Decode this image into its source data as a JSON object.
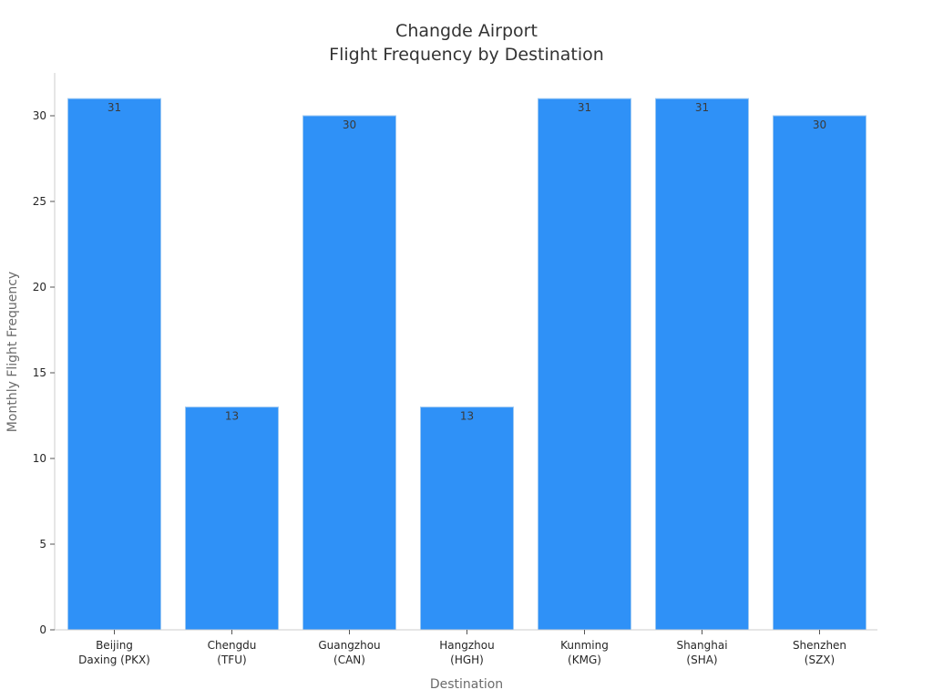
{
  "chart_data": {
    "type": "bar",
    "title": [
      "Changde Airport",
      "Flight Frequency by Destination"
    ],
    "xlabel": "Destination",
    "ylabel": "Monthly Flight Frequency",
    "categories": [
      [
        "Beijing",
        "Daxing (PKX)"
      ],
      [
        "Chengdu",
        "(TFU)"
      ],
      [
        "Guangzhou",
        "(CAN)"
      ],
      [
        "Hangzhou",
        "(HGH)"
      ],
      [
        "Kunming",
        "(KMG)"
      ],
      [
        "Shanghai",
        "(SHA)"
      ],
      [
        "Shenzhen",
        "(SZX)"
      ]
    ],
    "values": [
      31,
      13,
      30,
      13,
      31,
      31,
      30
    ],
    "data_labels": [
      "31",
      "13",
      "30",
      "13",
      "31",
      "31",
      "30"
    ],
    "ylim": [
      0,
      32.5
    ],
    "yticks": [
      0,
      5,
      10,
      15,
      20,
      25,
      30
    ],
    "grid": false,
    "legend": "none",
    "bar_color": "#2f91f7",
    "bar_edge_color": "#9cc8f2"
  }
}
